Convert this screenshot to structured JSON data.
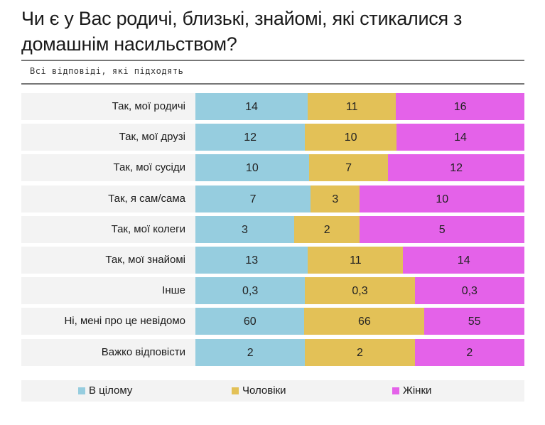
{
  "chart_data": {
    "type": "bar",
    "stacked": "normalized-horizontal",
    "title": "Чи є у Вас родичі, близькі, знайомі, які стикалися з домашнім насильством?",
    "subtitle": "Всі відповіді, які підходять",
    "categories": [
      "Так, мої родичі",
      "Так, мої друзі",
      "Так, мої сусіди",
      "Так, я сам/сама",
      "Так, мої колеги",
      "Так, мої знайомі",
      "Інше",
      "Ні, мені про це невідомо",
      "Важко відповісти"
    ],
    "series": [
      {
        "name": "В цілому",
        "color": "#96cddf",
        "values": [
          14,
          12,
          10,
          7,
          3,
          13,
          0.3,
          60,
          2
        ]
      },
      {
        "name": "Чоловіки",
        "color": "#e3c157",
        "values": [
          11,
          10,
          7,
          3,
          2,
          11,
          0.3,
          66,
          2
        ]
      },
      {
        "name": "Жінки",
        "color": "#e462e9",
        "values": [
          16,
          14,
          12,
          10,
          5,
          14,
          0.3,
          55,
          2
        ]
      }
    ],
    "legend": "bottom",
    "grid": false
  }
}
